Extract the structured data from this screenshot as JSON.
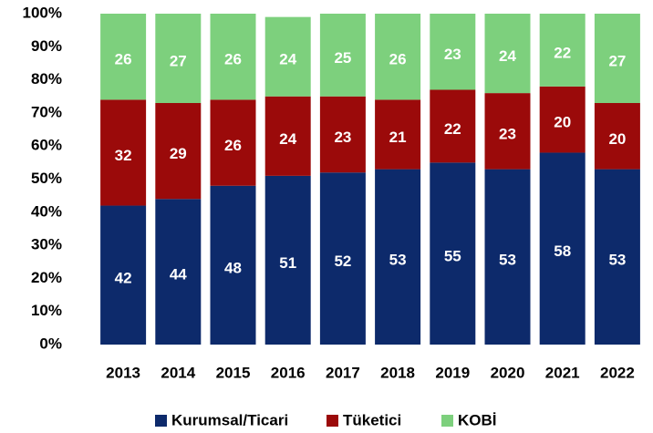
{
  "chart_data": {
    "type": "stacked_bar",
    "categories": [
      "2013",
      "2014",
      "2015",
      "2016",
      "2017",
      "2018",
      "2019",
      "2020",
      "2021",
      "2022"
    ],
    "series": [
      {
        "name": "Kurumsal/Ticari",
        "color": "#0d2a6b",
        "values": [
          42,
          44,
          48,
          51,
          52,
          53,
          55,
          53,
          58,
          53
        ]
      },
      {
        "name": "Tüketici",
        "color": "#9b0a0a",
        "values": [
          32,
          29,
          26,
          24,
          23,
          21,
          22,
          23,
          20,
          20
        ]
      },
      {
        "name": "KOBİ",
        "color": "#7dd07d",
        "values": [
          26,
          27,
          26,
          24,
          25,
          26,
          23,
          24,
          22,
          27
        ]
      }
    ],
    "ylim": [
      0,
      100
    ],
    "yticks": [
      {
        "value": 0,
        "label": "0%"
      },
      {
        "value": 10,
        "label": "10%"
      },
      {
        "value": 20,
        "label": "20%"
      },
      {
        "value": 30,
        "label": "30%"
      },
      {
        "value": 40,
        "label": "40%"
      },
      {
        "value": 50,
        "label": "50%"
      },
      {
        "value": 60,
        "label": "60%"
      },
      {
        "value": 70,
        "label": "70%"
      },
      {
        "value": 80,
        "label": "80%"
      },
      {
        "value": 90,
        "label": "90%"
      },
      {
        "value": 100,
        "label": "100%"
      }
    ],
    "legend": "bottom"
  }
}
